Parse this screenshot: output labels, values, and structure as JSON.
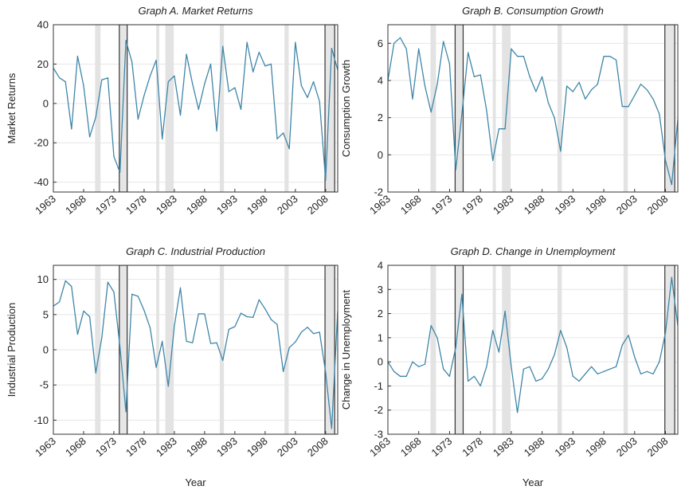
{
  "chart_data": [
    {
      "type": "line",
      "title": "Graph A. Market Returns",
      "ylabel": "Market Returns",
      "xlabel": "",
      "xlim": [
        1963,
        2010
      ],
      "ylim": [
        -45,
        40
      ],
      "yticks": [
        40,
        20,
        0,
        -20,
        -40
      ],
      "xticks": [
        1963,
        1968,
        1973,
        1978,
        1983,
        1988,
        1993,
        1998,
        2003,
        2008
      ],
      "grid": "y",
      "line_color": "#3f86a8",
      "recession_color": "#e3e3e3",
      "highlight_color": "#e6e6e6",
      "recessions": [
        [
          1969.9,
          1970.8
        ],
        [
          1980.0,
          1980.5
        ],
        [
          1981.5,
          1982.9
        ],
        [
          1990.5,
          1991.2
        ],
        [
          2001.2,
          2001.9
        ]
      ],
      "highlights": [
        [
          1973.9,
          1975.2
        ],
        [
          2007.9,
          2009.5
        ]
      ],
      "series": [
        {
          "x": [
            1963,
            1964,
            1965,
            1966,
            1967,
            1968,
            1969,
            1970,
            1971,
            1972,
            1973,
            1974,
            1975,
            1976,
            1977,
            1978,
            1979,
            1980,
            1981,
            1982,
            1983,
            1984,
            1985,
            1986,
            1987,
            1988,
            1989,
            1990,
            1991,
            1992,
            1993,
            1994,
            1995,
            1996,
            1997,
            1998,
            1999,
            2000,
            2001,
            2002,
            2003,
            2004,
            2005,
            2006,
            2007,
            2008,
            2009,
            2010
          ],
          "y": [
            18,
            13,
            11,
            -13,
            24,
            9,
            -17,
            -7,
            12,
            13,
            -27,
            -35,
            32,
            21,
            -8,
            4,
            14,
            22,
            -18,
            11,
            14,
            -6,
            25,
            10,
            -3,
            10,
            20,
            -14,
            29,
            6,
            8,
            -3,
            31,
            16,
            26,
            19,
            20,
            -18,
            -15,
            -23,
            31,
            9,
            3,
            11,
            1,
            -39,
            28,
            17
          ]
        }
      ]
    },
    {
      "type": "line",
      "title": "Graph B. Consumption Growth",
      "ylabel": "Consumption Growth",
      "xlabel": "",
      "xlim": [
        1963,
        2010
      ],
      "ylim": [
        -2,
        7
      ],
      "yticks": [
        6,
        4,
        2,
        0,
        -2
      ],
      "xticks": [
        1963,
        1968,
        1973,
        1978,
        1983,
        1988,
        1993,
        1998,
        2003,
        2008
      ],
      "grid": "y",
      "line_color": "#3f86a8",
      "recession_color": "#e3e3e3",
      "highlight_color": "#e6e6e6",
      "recessions": [
        [
          1969.9,
          1970.8
        ],
        [
          1980.0,
          1980.5
        ],
        [
          1981.5,
          1982.9
        ],
        [
          1990.5,
          1991.2
        ],
        [
          2001.2,
          2001.9
        ]
      ],
      "highlights": [
        [
          1973.9,
          1975.2
        ],
        [
          2007.9,
          2009.5
        ]
      ],
      "series": [
        {
          "x": [
            1963,
            1964,
            1965,
            1966,
            1967,
            1968,
            1969,
            1970,
            1971,
            1972,
            1973,
            1974,
            1975,
            1976,
            1977,
            1978,
            1979,
            1980,
            1981,
            1982,
            1983,
            1984,
            1985,
            1986,
            1987,
            1988,
            1989,
            1990,
            1991,
            1992,
            1993,
            1994,
            1995,
            1996,
            1997,
            1998,
            1999,
            2000,
            2001,
            2002,
            2003,
            2004,
            2005,
            2006,
            2007,
            2008,
            2009,
            2010
          ],
          "y": [
            4.0,
            6.0,
            6.3,
            5.7,
            3.0,
            5.7,
            3.7,
            2.3,
            3.8,
            6.1,
            4.9,
            -0.8,
            2.2,
            5.5,
            4.2,
            4.3,
            2.4,
            -0.3,
            1.4,
            1.4,
            5.7,
            5.3,
            5.3,
            4.2,
            3.4,
            4.2,
            2.8,
            2.0,
            0.2,
            3.7,
            3.4,
            3.9,
            3.0,
            3.5,
            3.8,
            5.3,
            5.3,
            5.1,
            2.6,
            2.6,
            3.2,
            3.8,
            3.5,
            3.0,
            2.2,
            -0.3,
            -1.6,
            1.9
          ]
        }
      ]
    },
    {
      "type": "line",
      "title": "Graph C. Industrial Production",
      "ylabel": "Industrial Production",
      "xlabel": "Year",
      "xlim": [
        1963,
        2010
      ],
      "ylim": [
        -12,
        12
      ],
      "yticks": [
        10,
        5,
        0,
        -5,
        -10
      ],
      "xticks": [
        1963,
        1968,
        1973,
        1978,
        1983,
        1988,
        1993,
        1998,
        2003,
        2008
      ],
      "grid": "y",
      "line_color": "#3f86a8",
      "recession_color": "#e3e3e3",
      "highlight_color": "#e6e6e6",
      "recessions": [
        [
          1969.9,
          1970.8
        ],
        [
          1980.0,
          1980.5
        ],
        [
          1981.5,
          1982.9
        ],
        [
          1990.5,
          1991.2
        ],
        [
          2001.2,
          2001.9
        ]
      ],
      "highlights": [
        [
          1973.9,
          1975.2
        ],
        [
          2007.9,
          2009.5
        ]
      ],
      "series": [
        {
          "x": [
            1963,
            1964,
            1965,
            1966,
            1967,
            1968,
            1969,
            1970,
            1971,
            1972,
            1973,
            1974,
            1975,
            1976,
            1977,
            1978,
            1979,
            1980,
            1981,
            1982,
            1983,
            1984,
            1985,
            1986,
            1987,
            1988,
            1989,
            1990,
            1991,
            1992,
            1993,
            1994,
            1995,
            1996,
            1997,
            1998,
            1999,
            2000,
            2001,
            2002,
            2003,
            2004,
            2005,
            2006,
            2007,
            2008,
            2009,
            2010
          ],
          "y": [
            6.2,
            6.8,
            9.8,
            9.0,
            2.2,
            5.5,
            4.7,
            -3.3,
            1.7,
            9.6,
            8.2,
            0.4,
            -8.8,
            7.9,
            7.6,
            5.6,
            3.1,
            -2.5,
            1.2,
            -5.2,
            3.4,
            8.8,
            1.2,
            1.0,
            5.1,
            5.1,
            0.9,
            1.0,
            -1.5,
            2.9,
            3.3,
            5.2,
            4.7,
            4.6,
            7.1,
            5.8,
            4.3,
            3.6,
            -3.1,
            0.3,
            1.1,
            2.5,
            3.2,
            2.3,
            2.5,
            -3.2,
            -11.2,
            5.5
          ]
        }
      ]
    },
    {
      "type": "line",
      "title": "Graph D. Change in Unemployment",
      "ylabel": "Change in Unemployment",
      "xlabel": "Year",
      "xlim": [
        1963,
        2010
      ],
      "ylim": [
        -3,
        4
      ],
      "yticks": [
        4,
        3,
        2,
        1,
        0,
        -1,
        -2,
        -3
      ],
      "xticks": [
        1963,
        1968,
        1973,
        1978,
        1983,
        1988,
        1993,
        1998,
        2003,
        2008
      ],
      "grid": "y",
      "line_color": "#3f86a8",
      "recession_color": "#e3e3e3",
      "highlight_color": "#e6e6e6",
      "recessions": [
        [
          1969.9,
          1970.8
        ],
        [
          1980.0,
          1980.5
        ],
        [
          1981.5,
          1982.9
        ],
        [
          1990.5,
          1991.2
        ],
        [
          2001.2,
          2001.9
        ]
      ],
      "highlights": [
        [
          1973.9,
          1975.2
        ],
        [
          2007.9,
          2009.5
        ]
      ],
      "series": [
        {
          "x": [
            1963,
            1964,
            1965,
            1966,
            1967,
            1968,
            1969,
            1970,
            1971,
            1972,
            1973,
            1974,
            1975,
            1976,
            1977,
            1978,
            1979,
            1980,
            1981,
            1982,
            1983,
            1984,
            1985,
            1986,
            1987,
            1988,
            1989,
            1990,
            1991,
            1992,
            1993,
            1994,
            1995,
            1996,
            1997,
            1998,
            1999,
            2000,
            2001,
            2002,
            2003,
            2004,
            2005,
            2006,
            2007,
            2008,
            2009,
            2010
          ],
          "y": [
            0.0,
            -0.4,
            -0.6,
            -0.6,
            0.0,
            -0.2,
            -0.1,
            1.5,
            1.0,
            -0.3,
            -0.6,
            0.6,
            2.8,
            -0.8,
            -0.6,
            -1.0,
            -0.2,
            1.3,
            0.4,
            2.1,
            -0.2,
            -2.1,
            -0.3,
            -0.2,
            -0.8,
            -0.7,
            -0.3,
            0.3,
            1.3,
            0.6,
            -0.6,
            -0.8,
            -0.5,
            -0.2,
            -0.5,
            -0.4,
            -0.3,
            -0.2,
            0.7,
            1.1,
            0.2,
            -0.5,
            -0.4,
            -0.5,
            0.0,
            1.2,
            3.5,
            1.5
          ]
        }
      ]
    }
  ]
}
